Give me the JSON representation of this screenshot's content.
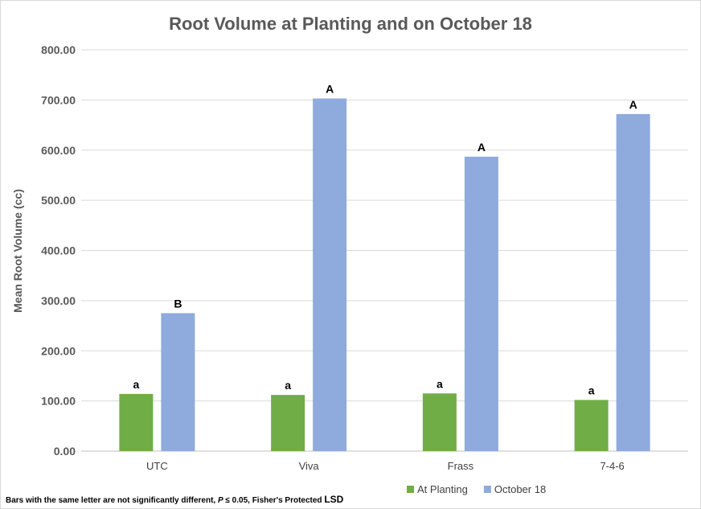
{
  "chart_data": {
    "type": "bar",
    "title": "Root Volume at Planting and on October 18",
    "xlabel": "",
    "ylabel": "Mean Root Volume (cc)",
    "ylim": [
      0,
      800
    ],
    "yticks": [
      "0.00",
      "100.00",
      "200.00",
      "300.00",
      "400.00",
      "500.00",
      "600.00",
      "700.00",
      "800.00"
    ],
    "categories": [
      "UTC",
      "Viva",
      "Frass",
      "7-4-6"
    ],
    "series": [
      {
        "name": "At Planting",
        "color": "#70ad47",
        "values": [
          114,
          112,
          115,
          102
        ],
        "labels": [
          "a",
          "a",
          "a",
          "a"
        ]
      },
      {
        "name": "October 18",
        "color": "#8faadc",
        "values": [
          275,
          703,
          587,
          672
        ],
        "labels": [
          "B",
          "A",
          "A",
          "A"
        ]
      }
    ],
    "grid": true,
    "legend": "bottom-right"
  },
  "footnote": {
    "part1": "Bars with the same letter are not significantly different, ",
    "italic": "P",
    "part2": " ≤ 0.05, Fisher's Protected ",
    "lsd": "LSD"
  }
}
